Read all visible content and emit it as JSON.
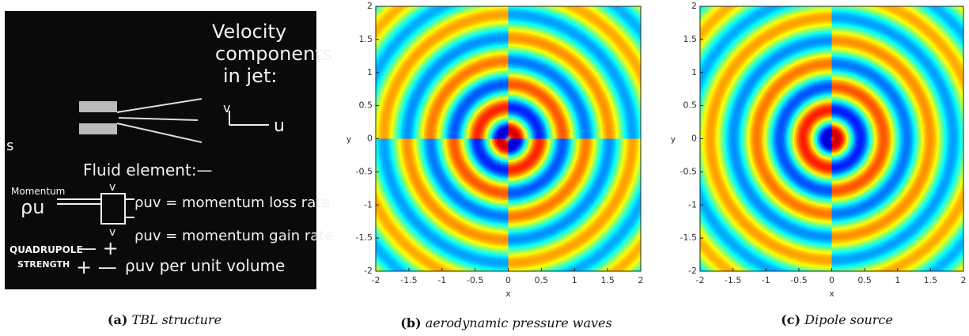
{
  "panels": [
    {
      "label": "(a)",
      "caption": "TBL structure",
      "board": [
        "Velocity",
        "components",
        "in jet:",
        "v",
        "u",
        "Fluid element:—",
        "Momentum",
        "ρu",
        "v",
        "ρuv = momentum loss rate",
        "ρuv = momentum gain rate",
        "v",
        "QUADRUPOLE",
        "STRENGTH",
        "— +",
        "+ —",
        "ρuv per unit volume",
        "s"
      ]
    },
    {
      "label": "(b)",
      "caption": "aerodynamic pressure waves",
      "xlabel": "x",
      "ylabel": "y",
      "xlim": [
        -2,
        2
      ],
      "ylim": [
        -2,
        2
      ],
      "xticks": [
        -2,
        -1.5,
        -1,
        -0.5,
        0,
        0.5,
        1,
        1.5,
        2
      ],
      "yticks": [
        -2,
        -1.5,
        -1,
        -0.5,
        0,
        0.5,
        1,
        1.5,
        2
      ]
    },
    {
      "label": "(c)",
      "caption": "Dipole source",
      "xlabel": "x",
      "ylabel": "y",
      "xlim": [
        -2,
        2
      ],
      "ylim": [
        -2,
        2
      ],
      "xticks": [
        -2,
        -1.5,
        -1,
        -0.5,
        0,
        0.5,
        1,
        1.5,
        2
      ],
      "yticks": [
        -2,
        -1.5,
        -1,
        -0.5,
        0,
        0.5,
        1,
        1.5,
        2
      ]
    }
  ]
}
